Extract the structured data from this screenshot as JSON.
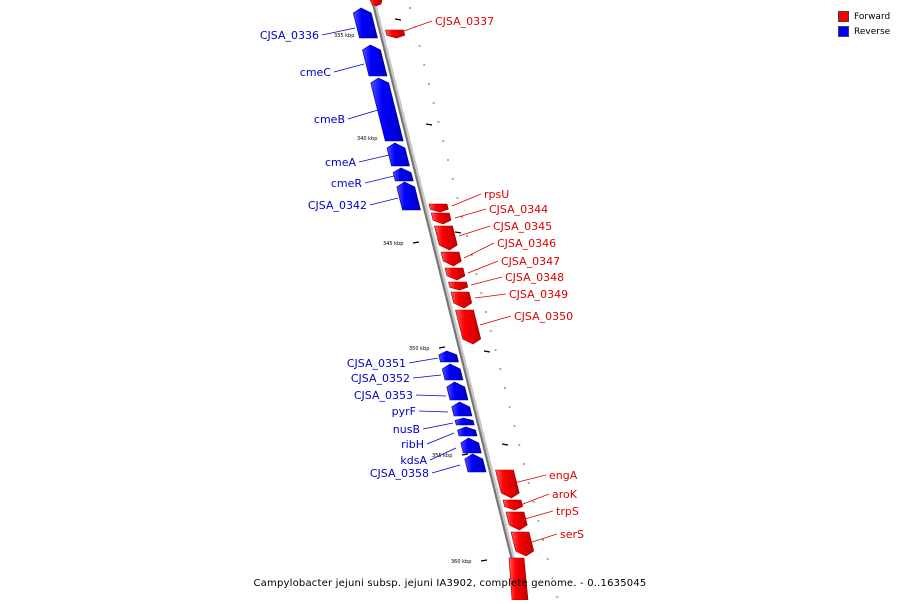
{
  "caption": "Campylobacter jejuni subsp. jejuni IA3902, complete genome. - 0..1635045",
  "legend": [
    {
      "label": "Forward",
      "color": "#ff0000"
    },
    {
      "label": "Reverse",
      "color": "#0000ff"
    }
  ],
  "scale": {
    "ticks": [
      "335 kbp",
      "340 kbp",
      "345 kbp",
      "350 kbp",
      "355 kbp",
      "360 kbp"
    ]
  },
  "genes": [
    {
      "name": "CJSA_0337",
      "strand": "forward"
    },
    {
      "name": "CJSA_0336",
      "strand": "reverse"
    },
    {
      "name": "cmeC",
      "strand": "reverse"
    },
    {
      "name": "cmeB",
      "strand": "reverse"
    },
    {
      "name": "cmeA",
      "strand": "reverse"
    },
    {
      "name": "cmeR",
      "strand": "reverse"
    },
    {
      "name": "CJSA_0342",
      "strand": "reverse"
    },
    {
      "name": "rpsU",
      "strand": "forward"
    },
    {
      "name": "CJSA_0344",
      "strand": "forward"
    },
    {
      "name": "CJSA_0345",
      "strand": "forward"
    },
    {
      "name": "CJSA_0346",
      "strand": "forward"
    },
    {
      "name": "CJSA_0347",
      "strand": "forward"
    },
    {
      "name": "CJSA_0348",
      "strand": "forward"
    },
    {
      "name": "CJSA_0349",
      "strand": "forward"
    },
    {
      "name": "CJSA_0350",
      "strand": "forward"
    },
    {
      "name": "CJSA_0351",
      "strand": "reverse"
    },
    {
      "name": "CJSA_0352",
      "strand": "reverse"
    },
    {
      "name": "CJSA_0353",
      "strand": "reverse"
    },
    {
      "name": "pyrF",
      "strand": "reverse"
    },
    {
      "name": "nusB",
      "strand": "reverse"
    },
    {
      "name": "ribH",
      "strand": "reverse"
    },
    {
      "name": "kdsA",
      "strand": "reverse"
    },
    {
      "name": "CJSA_0358",
      "strand": "reverse"
    },
    {
      "name": "engA",
      "strand": "forward"
    },
    {
      "name": "aroK",
      "strand": "forward"
    },
    {
      "name": "trpS",
      "strand": "forward"
    },
    {
      "name": "serS",
      "strand": "forward"
    }
  ]
}
